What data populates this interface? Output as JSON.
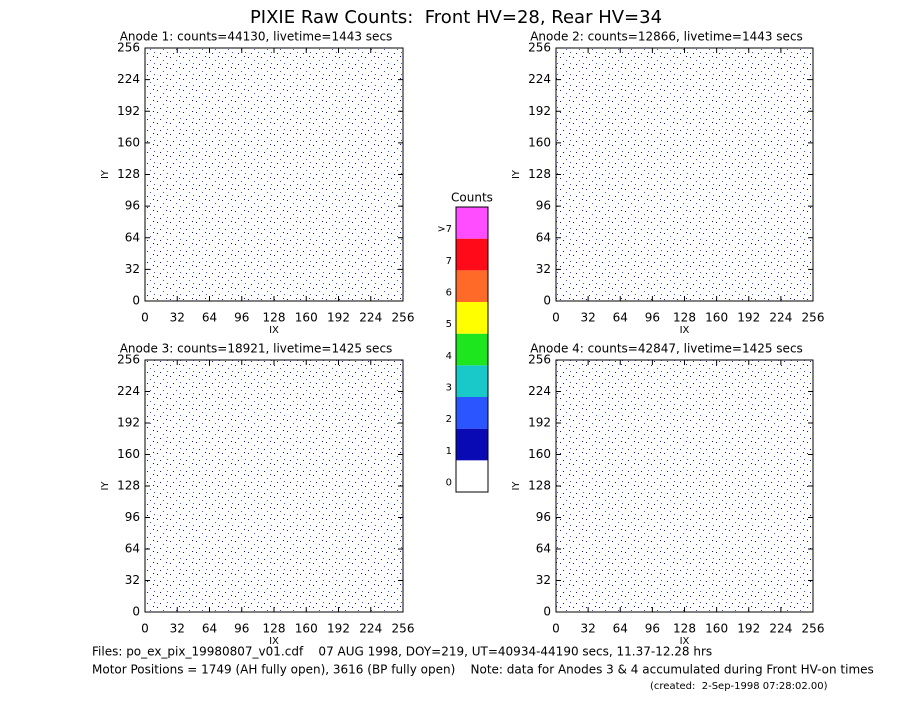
{
  "title": "PIXIE Raw Counts:  Front HV=28, Rear HV=34",
  "chart_data": [
    {
      "type": "heatmap",
      "title": "Anode 1: counts=44130, livetime=1443 secs",
      "x_label": "IX",
      "y_label": "IY",
      "xlim": [
        0,
        256
      ],
      "ylim": [
        0,
        256
      ],
      "xticks": [
        0,
        32,
        64,
        96,
        128,
        160,
        192,
        224,
        256
      ],
      "yticks": [
        0,
        32,
        64,
        96,
        128,
        160,
        192,
        224,
        256
      ]
    },
    {
      "type": "heatmap",
      "title": "Anode 2: counts=12866, livetime=1443 secs",
      "x_label": "IX",
      "y_label": "IY",
      "xlim": [
        0,
        256
      ],
      "ylim": [
        0,
        256
      ],
      "xticks": [
        0,
        32,
        64,
        96,
        128,
        160,
        192,
        224,
        256
      ],
      "yticks": [
        0,
        32,
        64,
        96,
        128,
        160,
        192,
        224,
        256
      ]
    },
    {
      "type": "heatmap",
      "title": "Anode 3: counts=18921, livetime=1425 secs",
      "x_label": "IX",
      "y_label": "IY",
      "xlim": [
        0,
        256
      ],
      "ylim": [
        0,
        256
      ],
      "xticks": [
        0,
        32,
        64,
        96,
        128,
        160,
        192,
        224,
        256
      ],
      "yticks": [
        0,
        32,
        64,
        96,
        128,
        160,
        192,
        224,
        256
      ]
    },
    {
      "type": "heatmap",
      "title": "Anode 4: counts=42847, livetime=1425 secs",
      "x_label": "IX",
      "y_label": "IY",
      "xlim": [
        0,
        256
      ],
      "ylim": [
        0,
        256
      ],
      "xticks": [
        0,
        32,
        64,
        96,
        128,
        160,
        192,
        224,
        256
      ],
      "yticks": [
        0,
        32,
        64,
        96,
        128,
        160,
        192,
        224,
        256
      ]
    }
  ],
  "colorbar": {
    "title": "Counts",
    "categories": [
      "0",
      "1",
      "2",
      "3",
      "4",
      "5",
      "6",
      "7",
      ">7"
    ],
    "colors": [
      "#ffffff",
      "#0a0ab4",
      "#2b55ff",
      "#19c8c8",
      "#1ee61e",
      "#ffff00",
      "#ff6a28",
      "#ff0a19",
      "#ff4dff"
    ]
  },
  "footer": {
    "files": "Files: po_ex_pix_19980807_v01.cdf    07 AUG 1998, DOY=219, UT=40934-44190 secs, 11.37-12.28 hrs",
    "motor": "Motor Positions = 1749 (AH fully open), 3616 (BP fully open)    Note: data for Anodes 3 & 4 accumulated during Front HV-on times",
    "created": "(created:  2-Sep-1998 07:28:02.00)"
  }
}
